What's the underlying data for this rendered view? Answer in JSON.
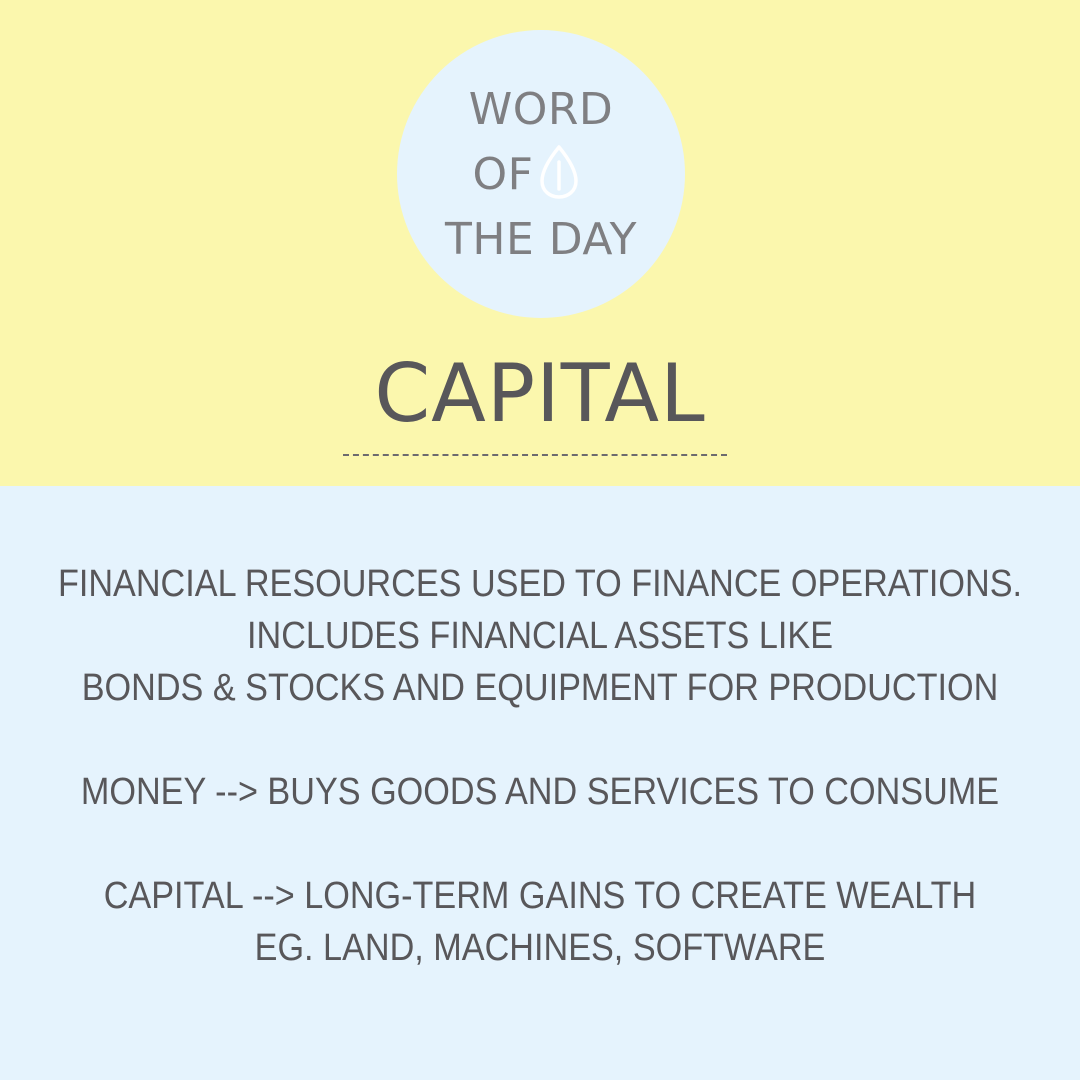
{
  "header": {
    "badge": {
      "line1": "WORD",
      "line2": "OF",
      "line3": "THE DAY",
      "icon": "leaf-icon"
    },
    "word": "CAPITAL"
  },
  "definition": {
    "lines": [
      "FINANCIAL RESOURCES USED TO FINANCE OPERATIONS.",
      "INCLUDES FINANCIAL ASSETS LIKE",
      "BONDS & STOCKS AND EQUIPMENT FOR PRODUCTION",
      "MONEY --> BUYS GOODS AND SERVICES TO CONSUME",
      "CAPITAL --> LONG-TERM GAINS TO CREATE WEALTH",
      "EG. LAND, MACHINES, SOFTWARE"
    ]
  },
  "colors": {
    "top_background": "#fbf7ad",
    "bottom_background": "#e5f3fd",
    "text": "#58575a",
    "badge_text": "#7f7f82"
  }
}
